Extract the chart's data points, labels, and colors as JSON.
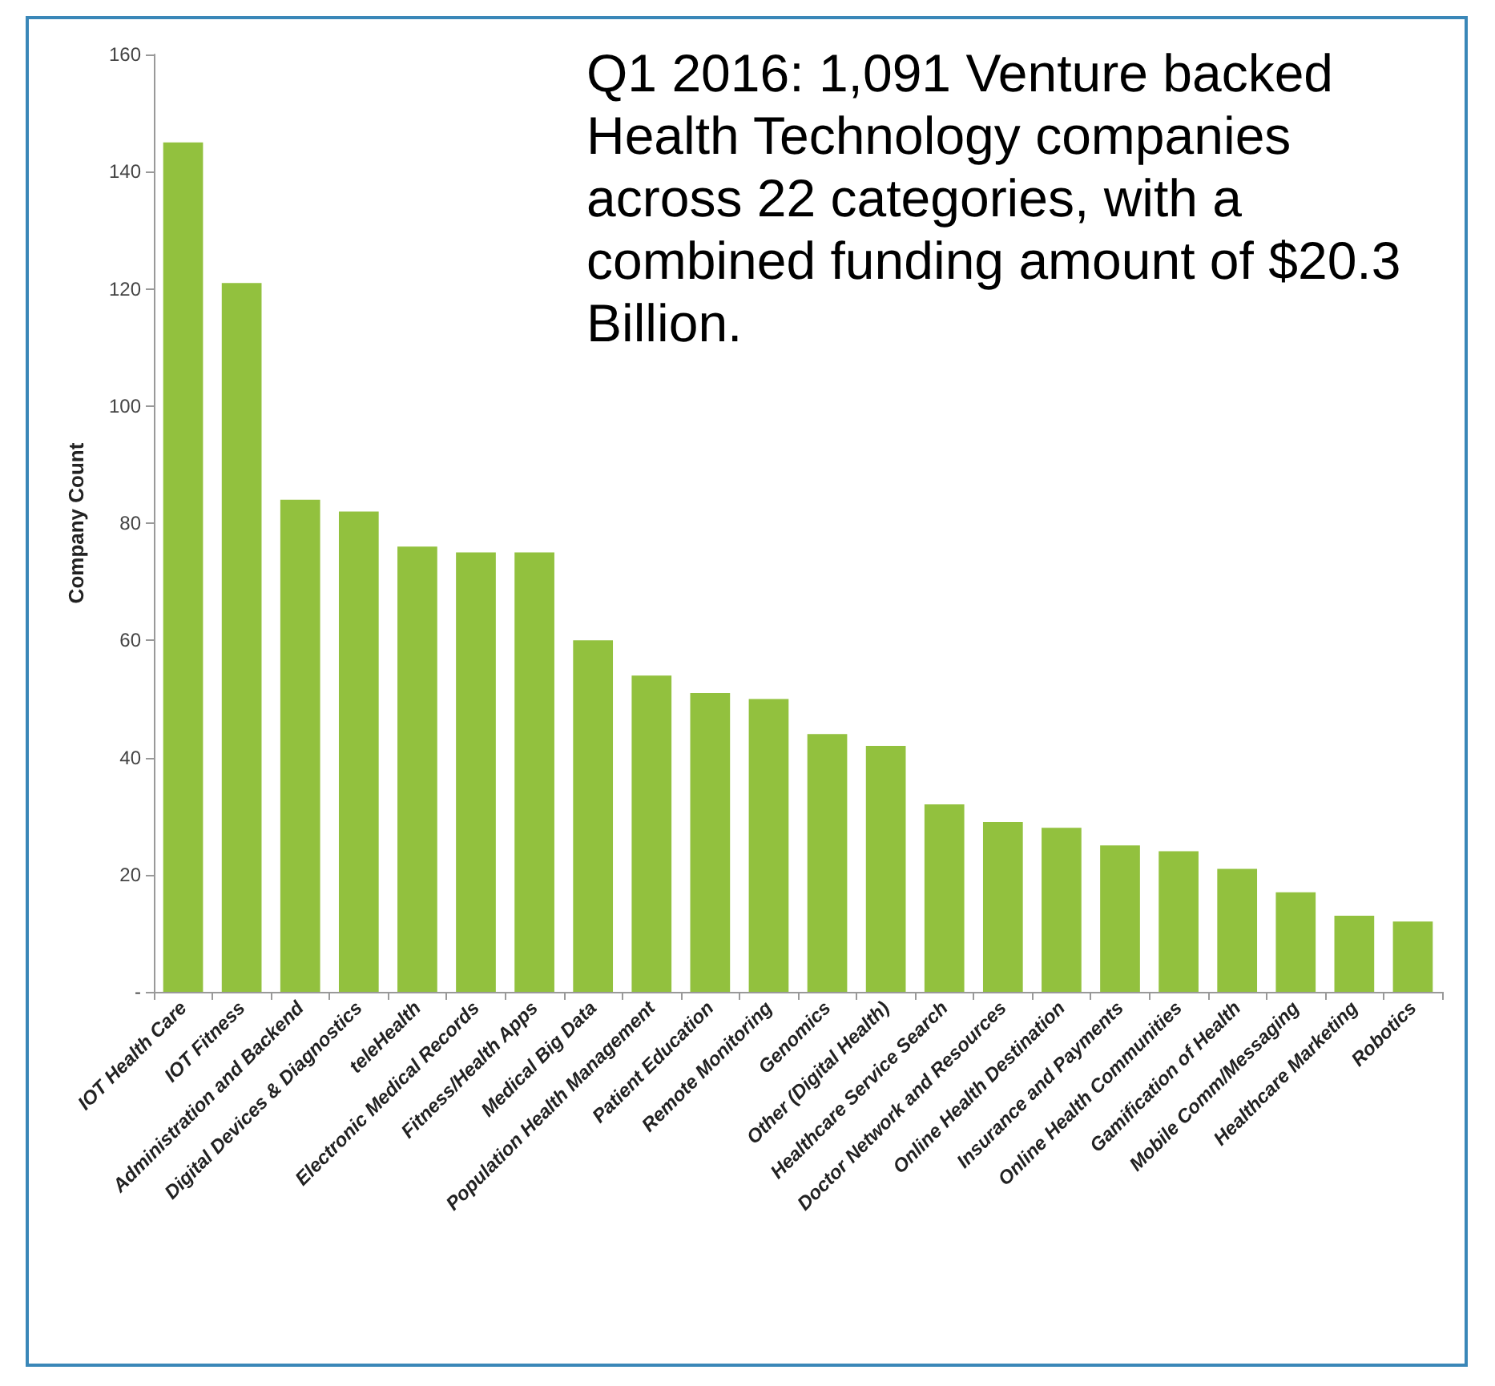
{
  "chart_data": {
    "type": "bar",
    "ylabel": "Company Count",
    "categories": [
      "IOT Health Care",
      "IOT Fitness",
      "Administration and Backend",
      "Digital Devices & Diagnostics",
      "teleHealth",
      "Electronic Medical Records",
      "Fitness/Health Apps",
      "Medical Big Data",
      "Population Health Management",
      "Patient Education",
      "Remote Monitoring",
      "Genomics",
      "Other (Digital Health)",
      "Healthcare Service Search",
      "Doctor Network and Resources",
      "Online Health Destination",
      "Insurance and Payments",
      "Online Health Communities",
      "Gamification of Health",
      "Mobile Comm/Messaging",
      "Healthcare Marketing",
      "Robotics"
    ],
    "values": [
      145,
      121,
      84,
      82,
      76,
      75,
      75,
      60,
      54,
      51,
      50,
      44,
      42,
      32,
      29,
      28,
      25,
      24,
      21,
      17,
      13,
      12
    ],
    "color": "#92c13e",
    "ylim": [
      0,
      160
    ],
    "yticks": [
      {
        "value": 0,
        "label": "-"
      },
      20,
      40,
      60,
      80,
      100,
      120,
      140,
      160
    ],
    "grid": false,
    "annotations": [
      "Q1 2016: 1,091 Venture backed Health Technology companies across 22 categories, with a combined funding amount of $20.3 Billion."
    ]
  }
}
